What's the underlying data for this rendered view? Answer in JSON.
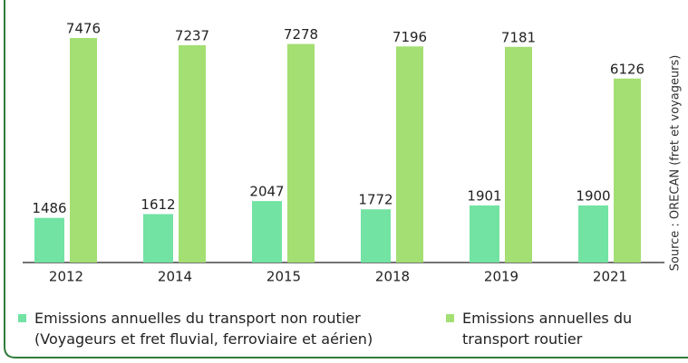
{
  "chart_data": {
    "type": "bar",
    "categories": [
      "2012",
      "2014",
      "2015",
      "2018",
      "2019",
      "2021"
    ],
    "series": [
      {
        "name": "Emissions annuelles du transport non routier (Voyageurs et fret fluvial, ferroviaire et aérien)",
        "color": "#72e3a3",
        "values": [
          1486,
          1612,
          2047,
          1772,
          1901,
          1900
        ]
      },
      {
        "name": "Emissions annuelles du transport routier",
        "color": "#a3df73",
        "values": [
          7476,
          7237,
          7278,
          7196,
          7181,
          6126
        ]
      }
    ],
    "source": "Source : ORECAN (fret et voyageurs)"
  }
}
